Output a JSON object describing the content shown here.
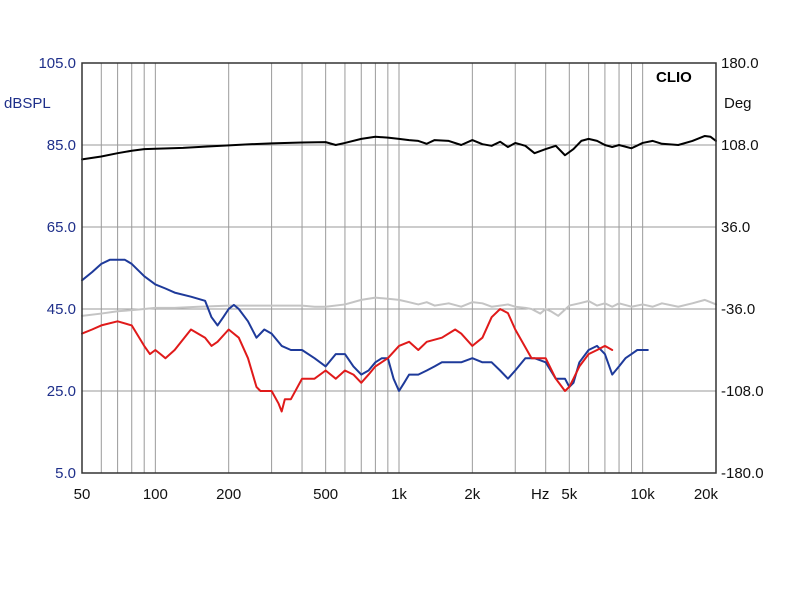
{
  "chart_data": {
    "type": "line",
    "brand": "CLIO",
    "y_left_unit": "dBSPL",
    "y_right_unit": "Deg",
    "x_unit": "Hz",
    "x_scale": "log",
    "xlim": [
      50,
      20000
    ],
    "ylim_left": [
      5,
      105
    ],
    "ylim_right": [
      -180,
      180
    ],
    "y_left_ticks": [
      "105.0",
      "85.0",
      "65.0",
      "45.0",
      "25.0",
      "5.0"
    ],
    "y_right_ticks": [
      "180.0",
      "108.0",
      "36.0",
      "-36.0",
      "-108.0",
      "-180.0"
    ],
    "x_ticks": [
      {
        "v": 50,
        "label": "50"
      },
      {
        "v": 100,
        "label": "100"
      },
      {
        "v": 200,
        "label": "200"
      },
      {
        "v": 500,
        "label": "500"
      },
      {
        "v": 1000,
        "label": "1k"
      },
      {
        "v": 2000,
        "label": "2k"
      },
      {
        "v": 5000,
        "label": "5k"
      },
      {
        "v": 10000,
        "label": "10k"
      },
      {
        "v": 20000,
        "label": "20k"
      }
    ],
    "grid": true,
    "series": [
      {
        "color": "#000000",
        "width": 2,
        "x": [
          50,
          60,
          70,
          80,
          90,
          100,
          130,
          160,
          200,
          250,
          300,
          400,
          500,
          550,
          600,
          700,
          800,
          900,
          1000,
          1100,
          1200,
          1300,
          1400,
          1600,
          1800,
          2000,
          2200,
          2400,
          2600,
          2800,
          3000,
          3300,
          3600,
          4000,
          4400,
          4800,
          5200,
          5600,
          6000,
          6500,
          7000,
          7500,
          8000,
          9000,
          10000,
          11000,
          12000,
          14000,
          16000,
          18000,
          19000,
          20000
        ],
        "y": [
          81.5,
          82.2,
          83.0,
          83.6,
          84.0,
          84.1,
          84.3,
          84.6,
          84.9,
          85.2,
          85.4,
          85.6,
          85.7,
          85.0,
          85.5,
          86.5,
          87.0,
          86.8,
          86.5,
          86.2,
          86.0,
          85.3,
          86.2,
          86.0,
          85.0,
          86.2,
          85.2,
          84.8,
          85.8,
          84.5,
          85.5,
          84.8,
          83.0,
          84.0,
          84.8,
          82.5,
          84.0,
          86.0,
          86.5,
          86.0,
          85.0,
          84.5,
          85.0,
          84.2,
          85.5,
          86.0,
          85.3,
          85.0,
          86.0,
          87.2,
          87.0,
          86.0
        ]
      },
      {
        "color": "#1e3a9a",
        "width": 2,
        "x": [
          50,
          55,
          60,
          65,
          70,
          75,
          80,
          90,
          100,
          110,
          120,
          140,
          160,
          170,
          180,
          190,
          200,
          210,
          220,
          240,
          260,
          280,
          300,
          330,
          360,
          400,
          450,
          500,
          550,
          600,
          650,
          700,
          750,
          800,
          850,
          900,
          950,
          1000,
          1050,
          1100,
          1200,
          1300,
          1400,
          1500,
          1600,
          1800,
          2000,
          2200,
          2400,
          2600,
          2800,
          3000,
          3300,
          3600,
          4000,
          4400,
          4800,
          5000,
          5200,
          5500,
          6000,
          6500,
          7000,
          7500,
          8000,
          8500,
          9000,
          9500,
          10000,
          10500
        ],
        "y": [
          52,
          54,
          56,
          57,
          57,
          57,
          56,
          53,
          51,
          50,
          49,
          48,
          47,
          43,
          41,
          43,
          45,
          46,
          45,
          42,
          38,
          40,
          39,
          36,
          35,
          35,
          33,
          31,
          34,
          34,
          31,
          29,
          30,
          32,
          33,
          33,
          28,
          25,
          27,
          29,
          29,
          30,
          31,
          32,
          32,
          32,
          33,
          32,
          32,
          30,
          28,
          30,
          33,
          33,
          32,
          28,
          28,
          26,
          27,
          32,
          35,
          36,
          34,
          29,
          31,
          33,
          34,
          35,
          35,
          35
        ]
      },
      {
        "color": "#e01a1a",
        "width": 2,
        "x": [
          50,
          55,
          60,
          70,
          80,
          90,
          95,
          100,
          105,
          110,
          120,
          140,
          160,
          170,
          180,
          200,
          220,
          240,
          260,
          270,
          300,
          320,
          330,
          340,
          360,
          400,
          450,
          500,
          550,
          600,
          650,
          700,
          750,
          800,
          900,
          1000,
          1100,
          1200,
          1300,
          1500,
          1700,
          1800,
          2000,
          2200,
          2400,
          2600,
          2800,
          3000,
          3500,
          4000,
          4400,
          4800,
          5000,
          5200,
          5500,
          6000,
          6500,
          7000,
          7500
        ],
        "y": [
          39,
          40,
          41,
          42,
          41,
          36,
          34,
          35,
          34,
          33,
          35,
          40,
          38,
          36,
          37,
          40,
          38,
          33,
          26,
          25,
          25,
          22,
          20,
          23,
          23,
          28,
          28,
          30,
          28,
          30,
          29,
          27,
          29,
          31,
          33,
          36,
          37,
          35,
          37,
          38,
          40,
          39,
          36,
          38,
          43,
          45,
          44,
          40,
          33,
          33,
          28,
          25,
          26,
          28,
          31,
          34,
          35,
          36,
          35
        ]
      },
      {
        "color": "#c4c4c4",
        "width": 2,
        "x": [
          50,
          60,
          70,
          80,
          90,
          100,
          120,
          150,
          200,
          250,
          300,
          350,
          400,
          450,
          500,
          600,
          700,
          800,
          900,
          1000,
          1100,
          1200,
          1300,
          1400,
          1600,
          1800,
          2000,
          2200,
          2400,
          2600,
          2800,
          3000,
          3300,
          3500,
          3800,
          4000,
          4200,
          4500,
          5000,
          5500,
          6000,
          6500,
          7000,
          7500,
          8000,
          9000,
          10000,
          11000,
          12000,
          14000,
          16000,
          18000,
          19000,
          20000
        ],
        "y": [
          -42,
          -40,
          -38,
          -37,
          -36,
          -35,
          -35,
          -34,
          -33,
          -33,
          -33,
          -33,
          -33,
          -34,
          -34,
          -32,
          -28,
          -26,
          -27,
          -28,
          -30,
          -32,
          -30,
          -33,
          -31,
          -34,
          -30,
          -31,
          -34,
          -33,
          -32,
          -34,
          -35,
          -36,
          -40,
          -36,
          -38,
          -42,
          -33,
          -31,
          -29,
          -33,
          -31,
          -34,
          -31,
          -34,
          -32,
          -34,
          -31,
          -34,
          -31,
          -28,
          -30,
          -32
        ],
        "axis": "right"
      }
    ]
  }
}
